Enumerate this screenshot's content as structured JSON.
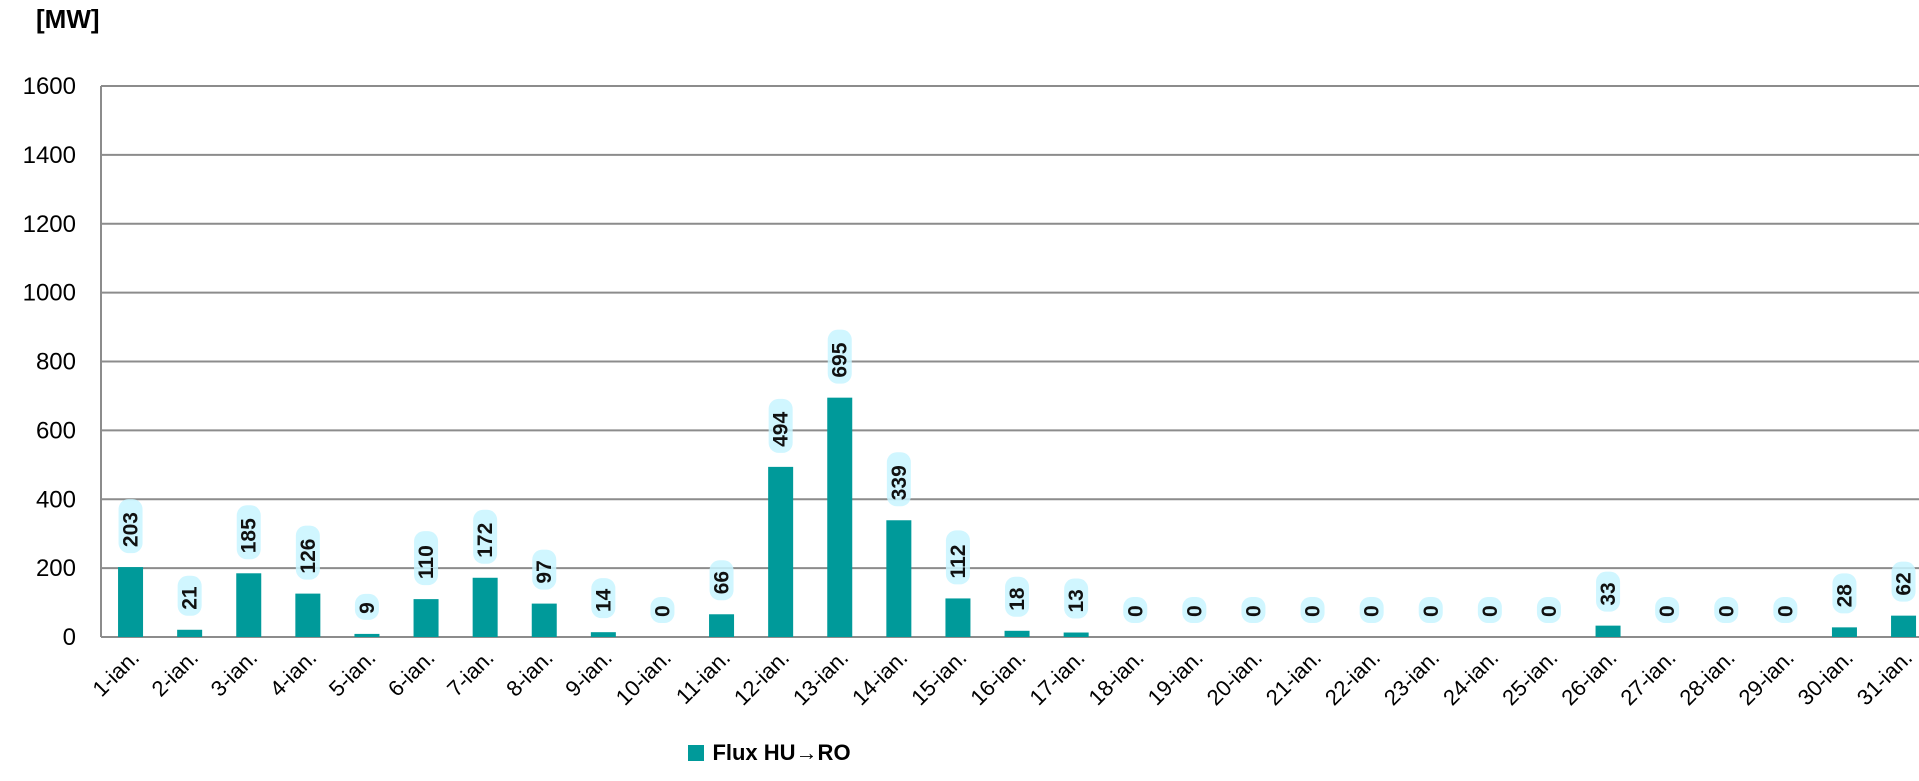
{
  "unit_label": "[MW]",
  "colors": {
    "bar": "#009a9a",
    "grid": "#8c8c8c",
    "label_glow": "#c8f4ff"
  },
  "chart_data": {
    "type": "bar",
    "ylabel": "[MW]",
    "ylim": [
      0,
      1600
    ],
    "yticks": [
      0,
      200,
      400,
      600,
      800,
      1000,
      1200,
      1400,
      1600
    ],
    "grid": true,
    "legend_position": "bottom",
    "categories": [
      "1-ian.",
      "2-ian.",
      "3-ian.",
      "4-ian.",
      "5-ian.",
      "6-ian.",
      "7-ian.",
      "8-ian.",
      "9-ian.",
      "10-ian.",
      "11-ian.",
      "12-ian.",
      "13-ian.",
      "14-ian.",
      "15-ian.",
      "16-ian.",
      "17-ian.",
      "18-ian.",
      "19-ian.",
      "20-ian.",
      "21-ian.",
      "22-ian.",
      "23-ian.",
      "24-ian.",
      "25-ian.",
      "26-ian.",
      "27-ian.",
      "28-ian.",
      "29-ian.",
      "30-ian.",
      "31-ian."
    ],
    "series": [
      {
        "name": "Flux HU→RO",
        "values": [
          203,
          21,
          185,
          126,
          9,
          110,
          172,
          97,
          14,
          0,
          66,
          494,
          695,
          339,
          112,
          18,
          13,
          0,
          0,
          0,
          0,
          0,
          0,
          0,
          0,
          33,
          0,
          0,
          0,
          28,
          62
        ]
      }
    ]
  }
}
